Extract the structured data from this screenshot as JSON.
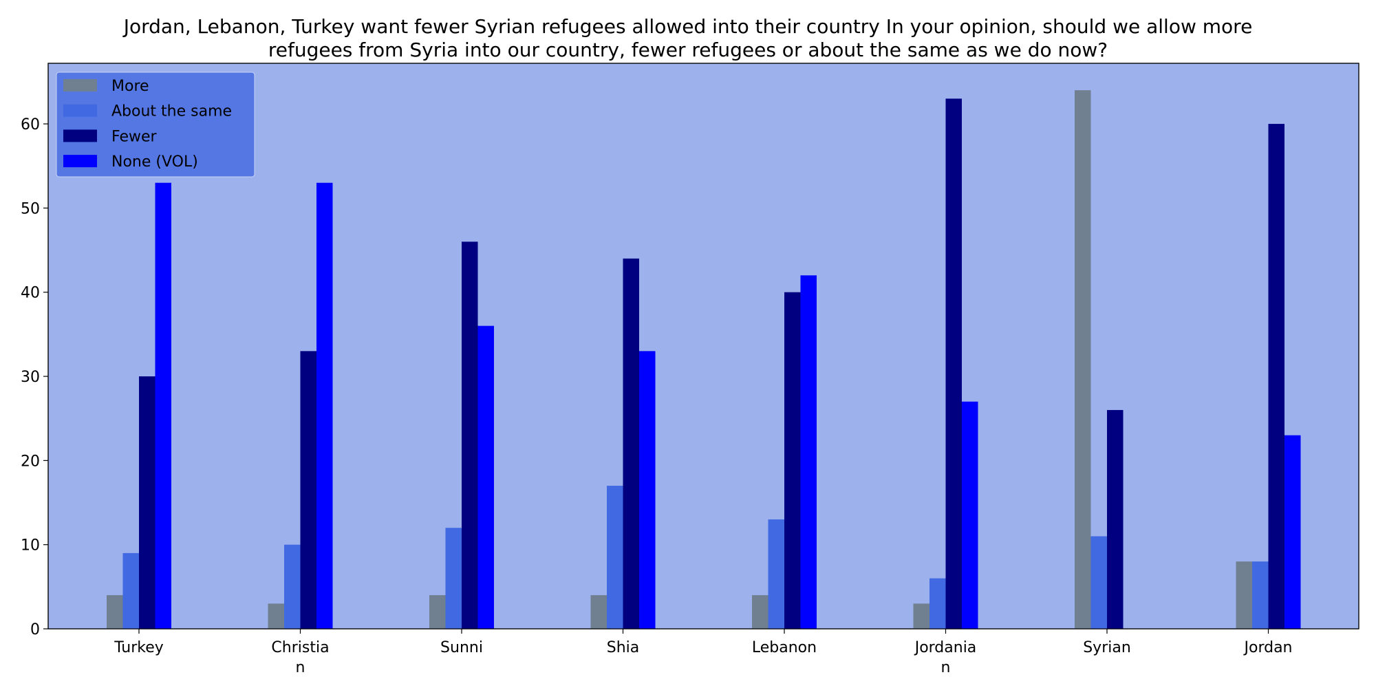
{
  "chart_data": {
    "type": "bar",
    "title_lines": [
      "Jordan, Lebanon, Turkey want fewer Syrian refugees allowed into their country In your opinion, should we allow more",
      "refugees from Syria into our country, fewer refugees or about the same as we do now?"
    ],
    "categories": [
      [
        "Turkey"
      ],
      [
        "Christia",
        "n"
      ],
      [
        "Sunni"
      ],
      [
        "Shia"
      ],
      [
        "Lebanon"
      ],
      [
        "Jordania",
        "n"
      ],
      [
        "Syrian"
      ],
      [
        "Jordan"
      ]
    ],
    "series": [
      {
        "name": "More",
        "color": "#708090",
        "values": [
          4,
          3,
          4,
          4,
          4,
          3,
          64,
          8
        ]
      },
      {
        "name": "About the same",
        "color": "#4169e1",
        "values": [
          9,
          10,
          12,
          17,
          13,
          6,
          11,
          8
        ]
      },
      {
        "name": "Fewer",
        "color": "#000080",
        "values": [
          30,
          33,
          46,
          44,
          40,
          63,
          26,
          60
        ]
      },
      {
        "name": "None (VOL)",
        "color": "#0000ff",
        "values": [
          53,
          53,
          36,
          33,
          42,
          27,
          null,
          23
        ]
      }
    ],
    "ylim": [
      0,
      67.2
    ],
    "yticks": [
      0,
      10,
      20,
      30,
      40,
      50,
      60
    ],
    "xlabel": "",
    "ylabel": "",
    "grid": false,
    "legend_position": "top-left",
    "plot_background": "#9db1ed",
    "legend_background": "#5577e3"
  }
}
